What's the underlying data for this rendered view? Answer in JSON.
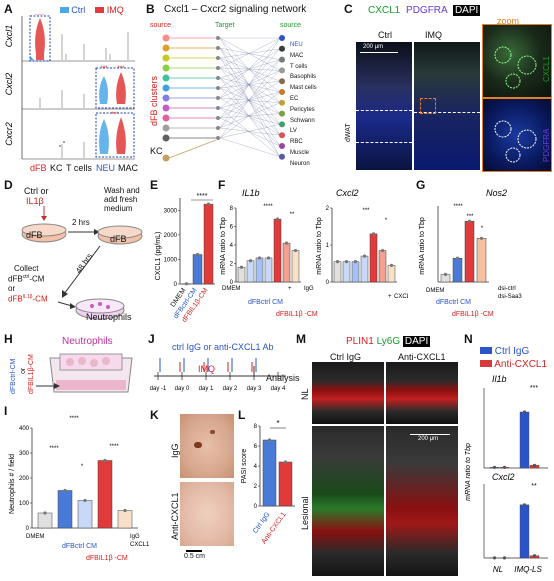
{
  "panelA": {
    "letter": "A",
    "legend": [
      "Ctrl",
      "IMQ"
    ],
    "legend_colors": [
      "#4aa8e8",
      "#e03a3a"
    ],
    "genes": [
      "Cxcl1",
      "Cxcl2",
      "Cxcr2"
    ],
    "cell_types": [
      "dFB",
      "KC",
      "T cells",
      "NEU",
      "MAC"
    ],
    "sig": [
      "****",
      "***",
      "***"
    ]
  },
  "panelB": {
    "letter": "B",
    "title": "Cxcl1 – Cxcr2 signaling network",
    "source_left": "source",
    "target": "Target",
    "source_right": "source",
    "left_group": "dFB clusters",
    "left_bottom": "KC",
    "targets": [
      "NEU",
      "MAC",
      "T cells",
      "Basophils",
      "Mast cells",
      "EC",
      "Pericytes",
      "Schwann",
      "LV",
      "RBC",
      "Muscle",
      "Neuron"
    ],
    "target_colors": [
      "#2a54c8",
      "#3b3b3b",
      "#7a7a7a",
      "#9a9a9a",
      "#8a6a4a",
      "#c47a2a",
      "#c4a030",
      "#7aa040",
      "#40a070",
      "#e05050",
      "#a040a0",
      "#5a5aa0"
    ]
  },
  "panelC": {
    "letter": "C",
    "channels": [
      "CXCL1",
      "PDGFRA",
      "DAPI"
    ],
    "cols": [
      "Ctrl",
      "IMQ",
      "zoom"
    ],
    "scale": "200 μm",
    "side_label": "dWAT",
    "zoom_labels": [
      "CXCL1",
      "PDGFRA"
    ]
  },
  "panelD": {
    "letter": "D",
    "line1": "Ctrl",
    "or": "or",
    "line2": "IL1β",
    "dish1": "dFB",
    "hrs2": "2 hrs",
    "wash": "Wash and add fresh medium",
    "dish2": "dFB",
    "hrs48": "48 hrs",
    "collect": "Collect",
    "cm1": "dFB",
    "cm1_sup": "ctrl",
    "cm1_suffix": "-CM",
    "cm2": "dFB",
    "cm2_sup": "IL1β",
    "cm2_suffix": "-CM",
    "neut": "Neutrophils"
  },
  "panelE": {
    "letter": "E",
    "ylabel": "CXCL1 (pg/mL)",
    "yticks": [
      "0",
      "1000",
      "2000",
      "3000"
    ],
    "sig": "****",
    "xlabels": [
      "DMEM",
      "dFBctrl-CM",
      "dFBIL1β-CM"
    ]
  },
  "panelF": {
    "letter": "F",
    "left_title": "IL1b",
    "right_title": "Cxcl2",
    "ylabel": "mRNA ratio to Tbp",
    "left_yticks": [
      "0",
      "2",
      "4",
      "6",
      "8"
    ],
    "right_yticks": [
      "0",
      "1",
      "2"
    ],
    "left_sig": [
      "****",
      "**"
    ],
    "right_sig": [
      "***",
      "*"
    ],
    "row_labels": [
      "DMEM",
      "+",
      "IgG",
      "+",
      "CXCL1 Ab",
      "dFBctrl CM",
      "dFBIL1β -CM"
    ]
  },
  "panelG": {
    "letter": "G",
    "title": "Nos2",
    "ylabel": "mRNA ratio to Tbp",
    "sig": [
      "****",
      "***",
      "*"
    ],
    "row_labels": [
      "DMEM",
      "dsi-ctrl",
      "dsi-Saa3",
      "dFBctrl CM",
      "dFBIL1β -CM"
    ]
  },
  "panelH": {
    "letter": "H",
    "title": "Neutrophils",
    "cm1": "dFBctrl-CM",
    "or": "or",
    "cm2": "dFBIL1β-CM"
  },
  "panelI": {
    "letter": "I",
    "ylabel": "Neutrophils # / field",
    "yticks": [
      "0",
      "100",
      "200",
      "300",
      "400"
    ],
    "sig": [
      "****",
      "****",
      "*",
      "****"
    ],
    "row_labels": [
      "DMEM",
      "dFBctrl CM",
      "dFBIL1β -CM",
      "IgG",
      "CXCL1 Ab"
    ]
  },
  "panelJ": {
    "letter": "J",
    "treat": "ctrl IgG or anti-CXCL1 Ab",
    "imq": "IMQ",
    "analysis": "Analysis",
    "days": [
      "day -1",
      "day 0",
      "day 1",
      "day 2",
      "day 3",
      "day 4"
    ]
  },
  "panelK": {
    "letter": "K",
    "rows": [
      "IgG",
      "Anti-CXCL1"
    ],
    "scale": "0.5 cm"
  },
  "panelL": {
    "letter": "L",
    "ylabel": "PASI score",
    "yticks": [
      "0",
      "2",
      "4",
      "6",
      "8"
    ],
    "sig": "*",
    "xlabels": [
      "Ctrl IgG",
      "Anti-CXCL1"
    ]
  },
  "panelM": {
    "letter": "M",
    "channels": [
      "PLIN1",
      "Ly6G",
      "DAPI"
    ],
    "cols": [
      "Ctrl IgG",
      "Anti-CXCL1"
    ],
    "rows": [
      "NL",
      "Lesional"
    ],
    "scale": "200 μm"
  },
  "panelN": {
    "letter": "N",
    "legend": [
      "Ctrl IgG",
      "Anti-CXCL1"
    ],
    "legend_colors": [
      "#2a54c8",
      "#d63a3a"
    ],
    "ylabel": "mRNA ratio to Tbp",
    "top_title": "Il1b",
    "bottom_title": "Cxcl2",
    "sig": [
      "***",
      "**"
    ],
    "xlabels": [
      "NL",
      "IMQ-LS"
    ]
  },
  "chart_data": [
    {
      "panel": "E",
      "type": "bar",
      "categories": [
        "DMEM",
        "dFBctrl-CM",
        "dFBIL1β-CM"
      ],
      "values": [
        10,
        1200,
        3250
      ],
      "ylim": [
        0,
        3500
      ]
    },
    {
      "panel": "F-IL1b",
      "type": "bar",
      "categories": [
        "DMEM",
        "dFBctrl CM",
        "dFBctrl CM + IgG",
        "dFBctrl CM + CXCL1 Ab",
        "dFBIL1β-CM",
        "dFBIL1β-CM + IgG",
        "dFBIL1β-CM + CXCL1 Ab"
      ],
      "values": [
        1.6,
        2.3,
        2.6,
        2.6,
        6.8,
        4.2,
        3.4
      ],
      "ylim": [
        0,
        8
      ]
    },
    {
      "panel": "F-Cxcl2",
      "type": "bar",
      "categories": [
        "DMEM",
        "dFBctrl CM",
        "dFBctrl CM + IgG",
        "dFBctrl CM + CXCL1 Ab",
        "dFBIL1β-CM",
        "dFBIL1β-CM + IgG",
        "dFBIL1β-CM + CXCL1 Ab"
      ],
      "values": [
        0.55,
        0.55,
        0.55,
        0.7,
        1.3,
        0.85,
        0.45
      ],
      "ylim": [
        0,
        2
      ]
    },
    {
      "panel": "G",
      "type": "bar",
      "categories": [
        "DMEM",
        "dFBctrl CM",
        "dFBIL1β-CM + dsi-ctrl",
        "dFBIL1β-CM + dsi-Saa3"
      ],
      "values": [
        0.008,
        0.025,
        0.064,
        0.046
      ],
      "ylim": [
        0,
        0.08
      ]
    },
    {
      "panel": "I",
      "type": "bar",
      "categories": [
        "DMEM",
        "dFBctrl CM + IgG",
        "dFBctrl CM + CXCL1 Ab",
        "dFBIL1β-CM + IgG",
        "dFBIL1β-CM + CXCL1 Ab"
      ],
      "values": [
        60,
        150,
        110,
        270,
        70
      ],
      "ylim": [
        0,
        400
      ]
    },
    {
      "panel": "L",
      "type": "bar",
      "categories": [
        "Ctrl IgG",
        "Anti-CXCL1"
      ],
      "values": [
        6.6,
        4.4
      ],
      "ylim": [
        0,
        8
      ]
    },
    {
      "panel": "N",
      "type": "bar",
      "categories": [
        "NL",
        "IMQ-LS"
      ],
      "series": [
        {
          "name": "Ctrl IgG",
          "Il1b": [
            0.5,
            42
          ],
          "Cxcl2": [
            0.2,
            115
          ]
        },
        {
          "name": "Anti-CXCL1",
          "Il1b": [
            0.5,
            2
          ],
          "Cxcl2": [
            0.2,
            5
          ]
        }
      ]
    }
  ]
}
